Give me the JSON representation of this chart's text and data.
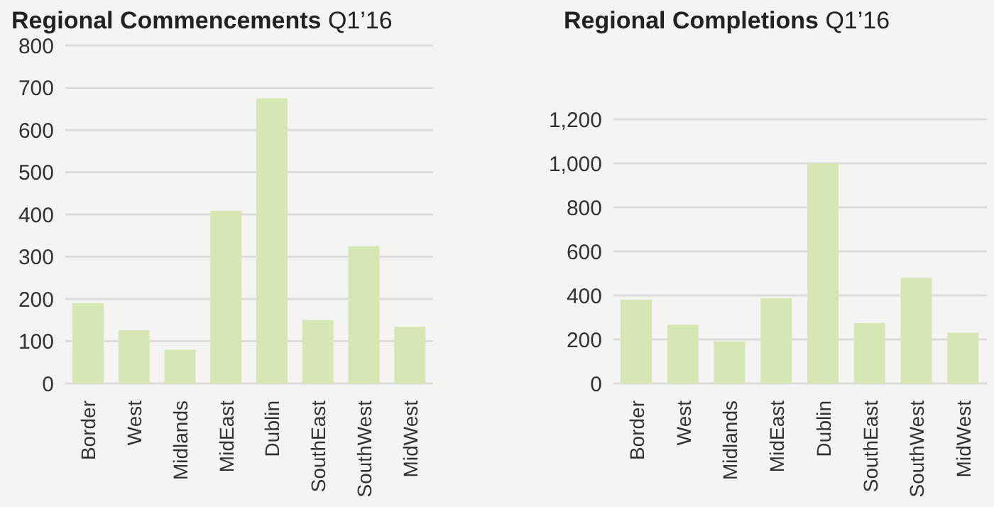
{
  "chart_data": [
    {
      "type": "bar",
      "title": "Regional Commencements Q1’16",
      "categories": [
        "Border",
        "West",
        "Midlands",
        "MidEast",
        "Dublin",
        "SouthEast",
        "SouthWest",
        "MidWest"
      ],
      "values": [
        190,
        126,
        80,
        409,
        675,
        150,
        325,
        134
      ],
      "color": "#d6e7b3",
      "ylim": [
        0,
        800
      ],
      "yticks": [
        0,
        100,
        200,
        300,
        400,
        500,
        600,
        700,
        800
      ],
      "grid": "y"
    },
    {
      "type": "bar",
      "title": "Regional Completions Q1’16",
      "categories": [
        "Border",
        "West",
        "Midlands",
        "MidEast",
        "Dublin",
        "SouthEast",
        "SouthWest",
        "MidWest"
      ],
      "values": [
        380,
        267,
        192,
        387,
        1000,
        274,
        479,
        231
      ],
      "color": "#d6e7b3",
      "ylim": [
        0,
        1200
      ],
      "yticks": [
        0,
        {
          "value": 200,
          "label": "200"
        },
        {
          "value": 400,
          "label": "400"
        },
        {
          "value": 600,
          "label": "600"
        },
        {
          "value": 800,
          "label": "800"
        },
        {
          "value": 1000,
          "label": "1,000"
        },
        {
          "value": 1200,
          "label": "1,200"
        }
      ],
      "grid": "y"
    }
  ]
}
